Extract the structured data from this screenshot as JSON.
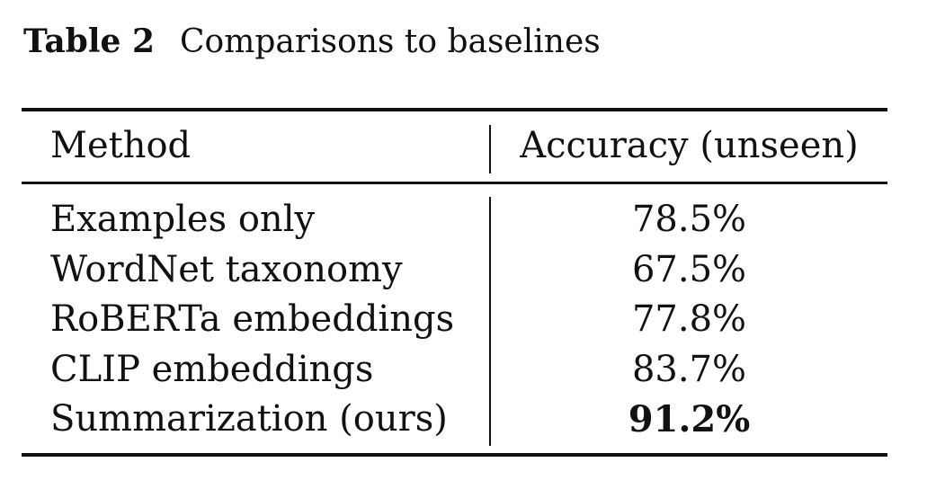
{
  "caption": {
    "label": "Table 2",
    "text": "Comparisons to baselines"
  },
  "table": {
    "columns": [
      "Method",
      "Accuracy (unseen)"
    ],
    "rows": [
      {
        "method": "Examples only",
        "accuracy": "78.5%"
      },
      {
        "method": "WordNet taxonomy",
        "accuracy": "67.5%"
      },
      {
        "method": "RoBERTa embeddings",
        "accuracy": "77.8%"
      },
      {
        "method": "CLIP embeddings",
        "accuracy": "83.7%"
      },
      {
        "method": "Summarization (ours)",
        "accuracy": "91.2%",
        "best": true
      }
    ]
  }
}
